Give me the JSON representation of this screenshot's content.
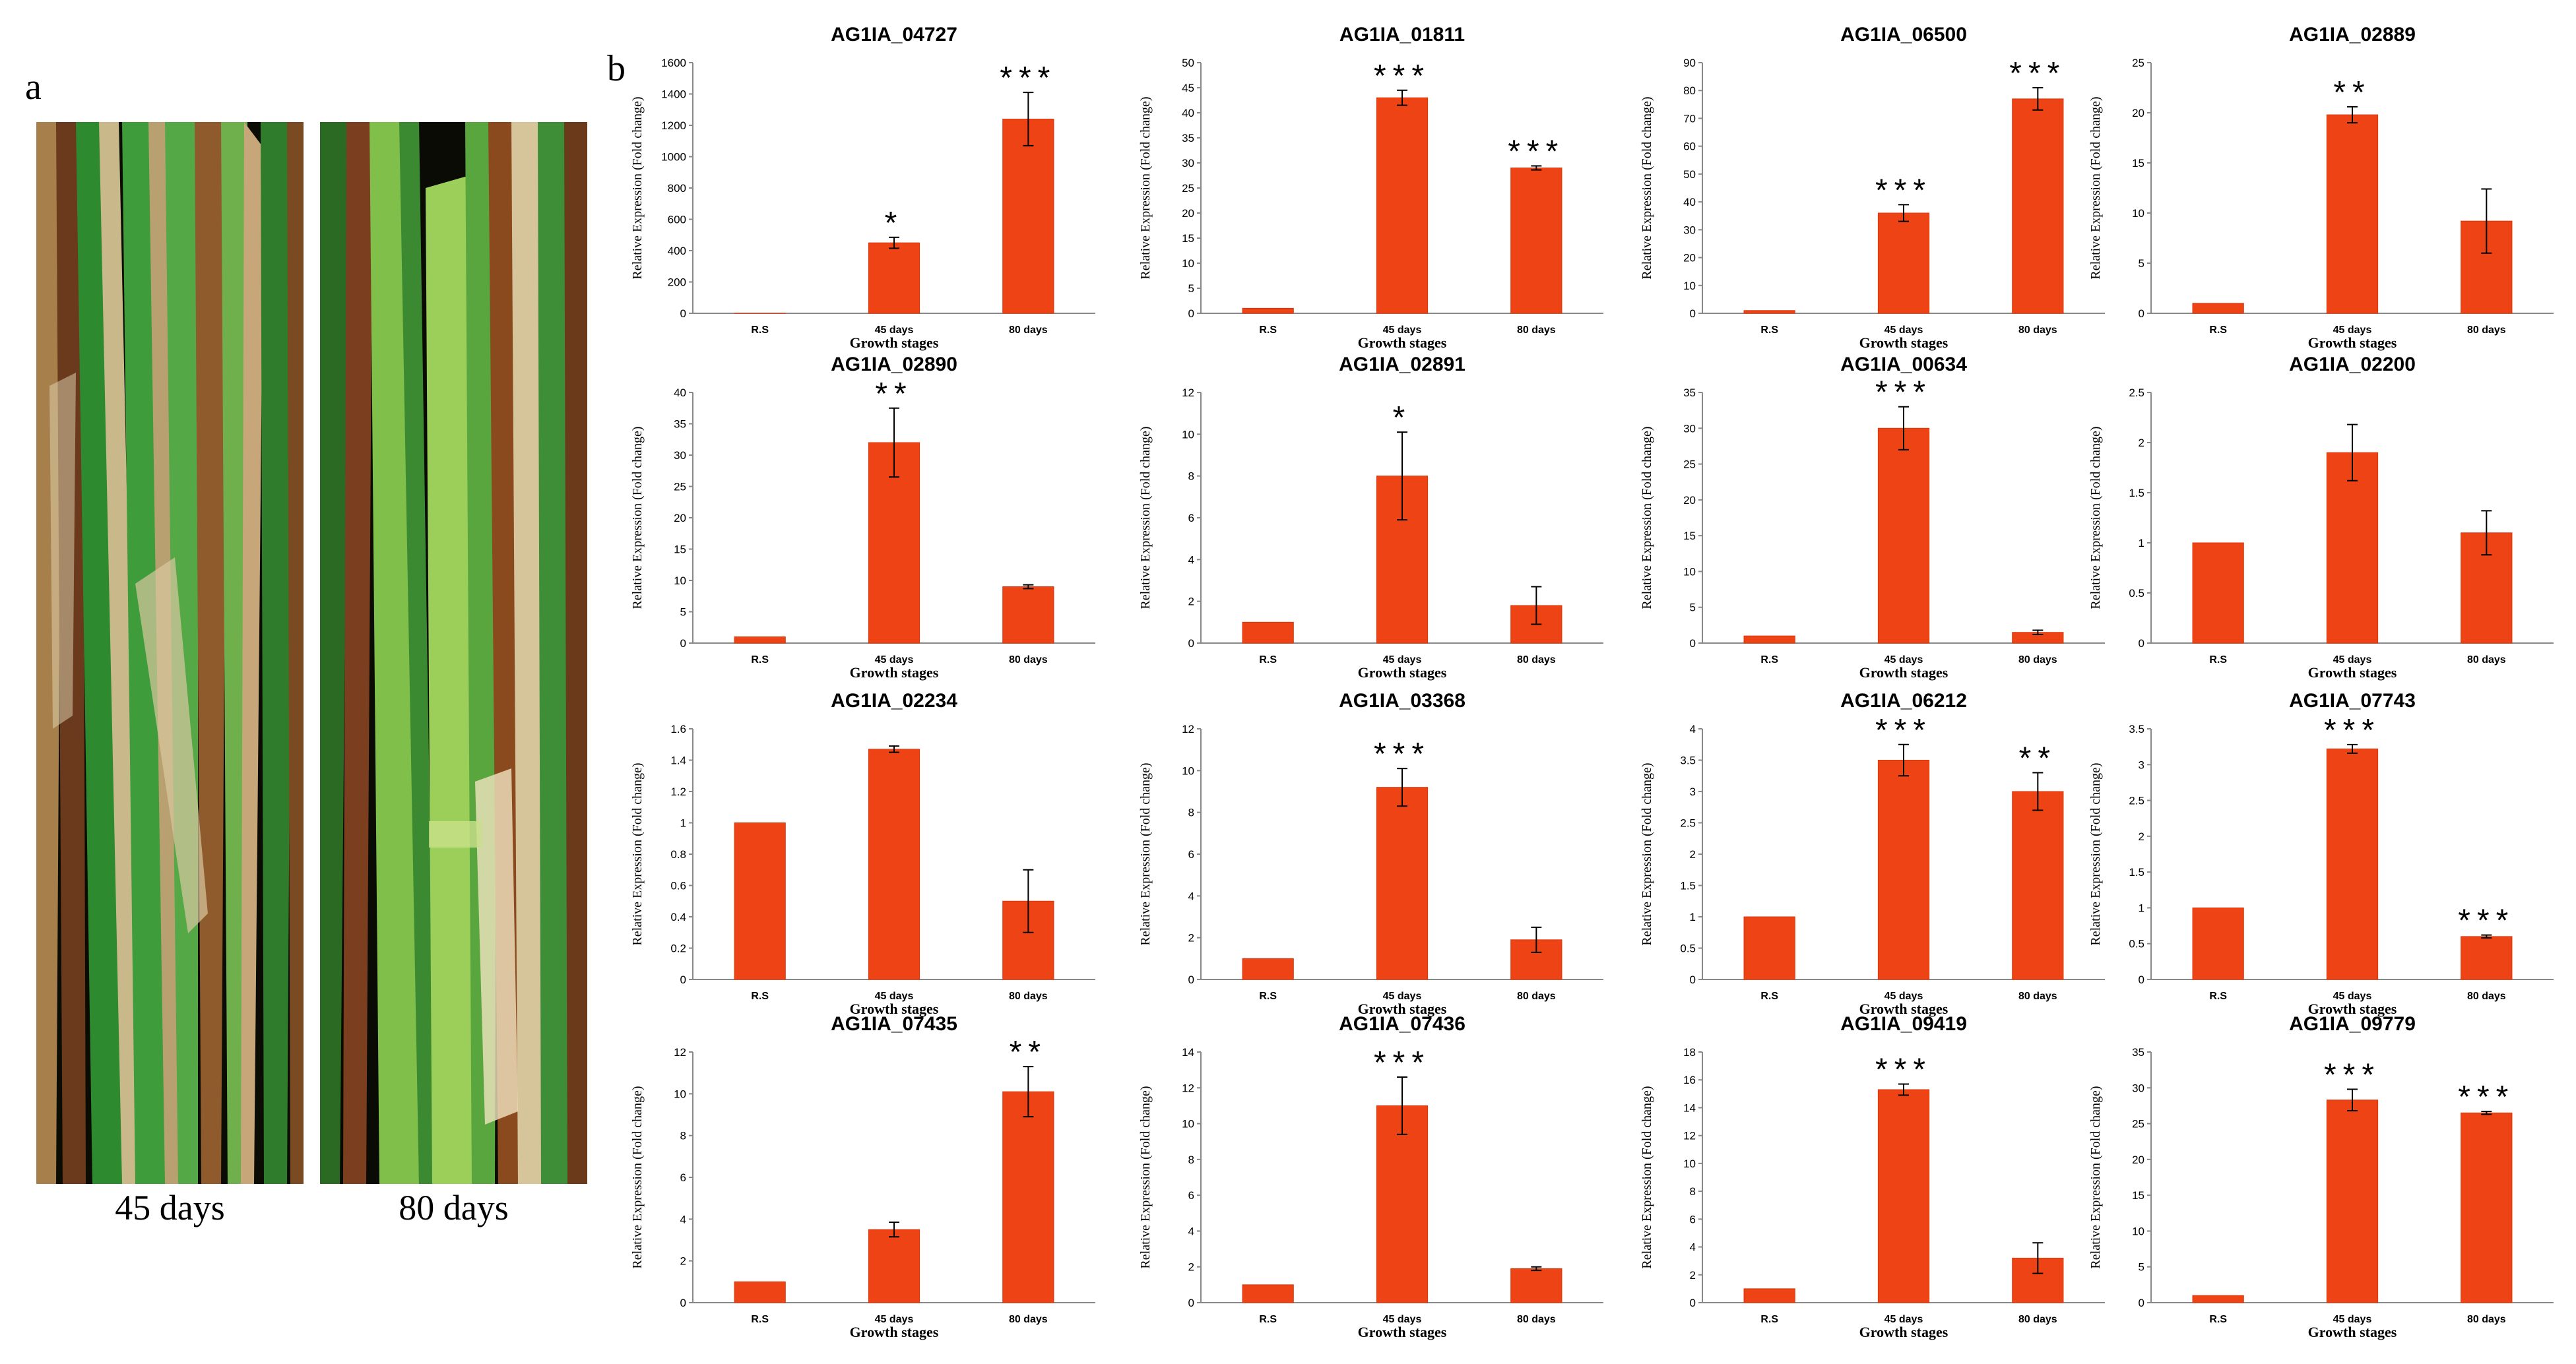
{
  "panel_a_label": "a",
  "panel_b_label": "b",
  "photos": [
    {
      "caption": "45 days"
    },
    {
      "caption": "80 days"
    }
  ],
  "colors": {
    "bar": "#ee4415",
    "bar_edge": "#d8370c"
  },
  "chart_data": [
    {
      "type": "bar",
      "title": "AG1IA_04727",
      "categories": [
        "R.S",
        "45 days",
        "80 days"
      ],
      "values": [
        1,
        450,
        1240
      ],
      "errors": [
        0,
        35,
        170
      ],
      "significance": [
        "",
        "*",
        "***"
      ],
      "xlabel": "Growth stages",
      "ylabel": "Relative Expression (Fold change)",
      "ylim": [
        0,
        1600
      ],
      "ticks": [
        0,
        200,
        400,
        600,
        800,
        1000,
        1200,
        1400,
        1600
      ]
    },
    {
      "type": "bar",
      "title": "AG1IA_01811",
      "categories": [
        "R.S",
        "45 days",
        "80 days"
      ],
      "values": [
        1,
        43,
        29
      ],
      "errors": [
        0,
        1.5,
        0.4
      ],
      "significance": [
        "",
        "***",
        "***"
      ],
      "xlabel": "Growth stages",
      "ylabel": "Relative Expression (Fold change)",
      "ylim": [
        0,
        50
      ],
      "ticks": [
        0,
        5,
        10,
        15,
        20,
        25,
        30,
        35,
        40,
        45,
        50
      ]
    },
    {
      "type": "bar",
      "title": "AG1IA_06500",
      "categories": [
        "R.S",
        "45 days",
        "80 days"
      ],
      "values": [
        1,
        36,
        77
      ],
      "errors": [
        0,
        3,
        4
      ],
      "significance": [
        "",
        "***",
        "***"
      ],
      "xlabel": "Growth stages",
      "ylabel": "Relative Expression (Fold change)",
      "ylim": [
        0,
        90
      ],
      "ticks": [
        0,
        10,
        20,
        30,
        40,
        50,
        60,
        70,
        80,
        90
      ]
    },
    {
      "type": "bar",
      "title": "AG1IA_02889",
      "categories": [
        "R.S",
        "45 days",
        "80 days"
      ],
      "values": [
        1,
        19.8,
        9.2
      ],
      "errors": [
        0,
        0.8,
        3.2
      ],
      "significance": [
        "",
        "**",
        ""
      ],
      "xlabel": "Growth stages",
      "ylabel": "Relative Expression (Fold change)",
      "ylim": [
        0,
        25
      ],
      "ticks": [
        0,
        5,
        10,
        15,
        20,
        25
      ]
    },
    {
      "type": "bar",
      "title": "AG1IA_02890",
      "categories": [
        "R.S",
        "45 days",
        "80 days"
      ],
      "values": [
        1,
        32,
        9
      ],
      "errors": [
        0,
        5.5,
        0.3
      ],
      "significance": [
        "",
        "**",
        ""
      ],
      "xlabel": "Growth stages",
      "ylabel": "Relative Expression (Fold change)",
      "ylim": [
        0,
        40
      ],
      "ticks": [
        0,
        5,
        10,
        15,
        20,
        25,
        30,
        35,
        40
      ]
    },
    {
      "type": "bar",
      "title": "AG1IA_02891",
      "categories": [
        "R.S",
        "45 days",
        "80 days"
      ],
      "values": [
        1,
        8,
        1.8
      ],
      "errors": [
        0,
        2.1,
        0.9
      ],
      "significance": [
        "",
        "*",
        ""
      ],
      "xlabel": "Growth stages",
      "ylabel": "Relative Expression (Fold change)",
      "ylim": [
        0,
        12
      ],
      "ticks": [
        0,
        2,
        4,
        6,
        8,
        10,
        12
      ]
    },
    {
      "type": "bar",
      "title": "AG1IA_00634",
      "categories": [
        "R.S",
        "45 days",
        "80 days"
      ],
      "values": [
        1,
        30,
        1.5
      ],
      "errors": [
        0,
        3,
        0.3
      ],
      "significance": [
        "",
        "***",
        ""
      ],
      "xlabel": "Growth stages",
      "ylabel": "Relative Expression (Fold change)",
      "ylim": [
        0,
        35
      ],
      "ticks": [
        0,
        5,
        10,
        15,
        20,
        25,
        30,
        35
      ]
    },
    {
      "type": "bar",
      "title": "AG1IA_02200",
      "categories": [
        "R.S",
        "45 days",
        "80 days"
      ],
      "values": [
        1,
        1.9,
        1.1
      ],
      "errors": [
        0,
        0.28,
        0.22
      ],
      "significance": [
        "",
        "",
        ""
      ],
      "xlabel": "Growth stages",
      "ylabel": "Relative Expression (Fold change)",
      "ylim": [
        0,
        2.5
      ],
      "ticks": [
        0,
        0.5,
        1,
        1.5,
        2,
        2.5
      ]
    },
    {
      "type": "bar",
      "title": "AG1IA_02234",
      "categories": [
        "R.S",
        "45 days",
        "80 days"
      ],
      "values": [
        1,
        1.47,
        0.5
      ],
      "errors": [
        0,
        0.02,
        0.2
      ],
      "significance": [
        "",
        "",
        ""
      ],
      "xlabel": "Growth stages",
      "ylabel": "Relative Expression (Fold change)",
      "ylim": [
        0,
        1.6
      ],
      "ticks": [
        0,
        0.2,
        0.4,
        0.6,
        0.8,
        1,
        1.2,
        1.4,
        1.6
      ]
    },
    {
      "type": "bar",
      "title": "AG1IA_03368",
      "categories": [
        "R.S",
        "45 days",
        "80 days"
      ],
      "values": [
        1,
        9.2,
        1.9
      ],
      "errors": [
        0,
        0.9,
        0.6
      ],
      "significance": [
        "",
        "***",
        ""
      ],
      "xlabel": "Growth stages",
      "ylabel": "Relative Expression (Fold change)",
      "ylim": [
        0,
        12
      ],
      "ticks": [
        0,
        2,
        4,
        6,
        8,
        10,
        12
      ]
    },
    {
      "type": "bar",
      "title": "AG1IA_06212",
      "categories": [
        "R.S",
        "45 days",
        "80 days"
      ],
      "values": [
        1,
        3.5,
        3
      ],
      "errors": [
        0,
        0.25,
        0.3
      ],
      "significance": [
        "",
        "***",
        "**"
      ],
      "xlabel": "Growth stages",
      "ylabel": "Relative Expression (Fold change)",
      "ylim": [
        0,
        4
      ],
      "ticks": [
        0,
        0.5,
        1,
        1.5,
        2,
        2.5,
        3,
        3.5,
        4
      ]
    },
    {
      "type": "bar",
      "title": "AG1IA_07743",
      "categories": [
        "R.S",
        "45 days",
        "80 days"
      ],
      "values": [
        1,
        3.22,
        0.6
      ],
      "errors": [
        0,
        0.06,
        0.02
      ],
      "significance": [
        "",
        "***",
        "***"
      ],
      "xlabel": "Growth stages",
      "ylabel": "Relative Expression (Fold change)",
      "ylim": [
        0,
        3.5
      ],
      "ticks": [
        0,
        0.5,
        1,
        1.5,
        2,
        2.5,
        3,
        3.5
      ]
    },
    {
      "type": "bar",
      "title": "AG1IA_07435",
      "categories": [
        "R.S",
        "45 days",
        "80 days"
      ],
      "values": [
        1,
        3.5,
        10.1
      ],
      "errors": [
        0,
        0.35,
        1.2
      ],
      "significance": [
        "",
        "",
        "**"
      ],
      "xlabel": "Growth stages",
      "ylabel": "Relative Expression (Fold change)",
      "ylim": [
        0,
        12
      ],
      "ticks": [
        0,
        2,
        4,
        6,
        8,
        10,
        12
      ]
    },
    {
      "type": "bar",
      "title": "AG1IA_07436",
      "categories": [
        "R.S",
        "45 days",
        "80 days"
      ],
      "values": [
        1,
        11,
        1.9
      ],
      "errors": [
        0,
        1.6,
        0.1
      ],
      "significance": [
        "",
        "***",
        ""
      ],
      "xlabel": "Growth stages",
      "ylabel": "Relative Expression (Fold change)",
      "ylim": [
        0,
        14
      ],
      "ticks": [
        0,
        2,
        4,
        6,
        8,
        10,
        12,
        14
      ]
    },
    {
      "type": "bar",
      "title": "AG1IA_09419",
      "categories": [
        "R.S",
        "45 days",
        "80 days"
      ],
      "values": [
        1,
        15.3,
        3.2
      ],
      "errors": [
        0,
        0.4,
        1.1
      ],
      "significance": [
        "",
        "***",
        ""
      ],
      "xlabel": "Growth stages",
      "ylabel": "Relative Expression (Fold change)",
      "ylim": [
        0,
        18
      ],
      "ticks": [
        0,
        2,
        4,
        6,
        8,
        10,
        12,
        14,
        16,
        18
      ]
    },
    {
      "type": "bar",
      "title": "AG1IA_09779",
      "categories": [
        "R.S",
        "45 days",
        "80 days"
      ],
      "values": [
        1,
        28.3,
        26.5
      ],
      "errors": [
        0,
        1.5,
        0.2
      ],
      "significance": [
        "",
        "***",
        "***"
      ],
      "xlabel": "Growth stages",
      "ylabel": "Relative Expression (Fold change)",
      "ylim": [
        0,
        35
      ],
      "ticks": [
        0,
        5,
        10,
        15,
        20,
        25,
        30,
        35
      ]
    }
  ]
}
